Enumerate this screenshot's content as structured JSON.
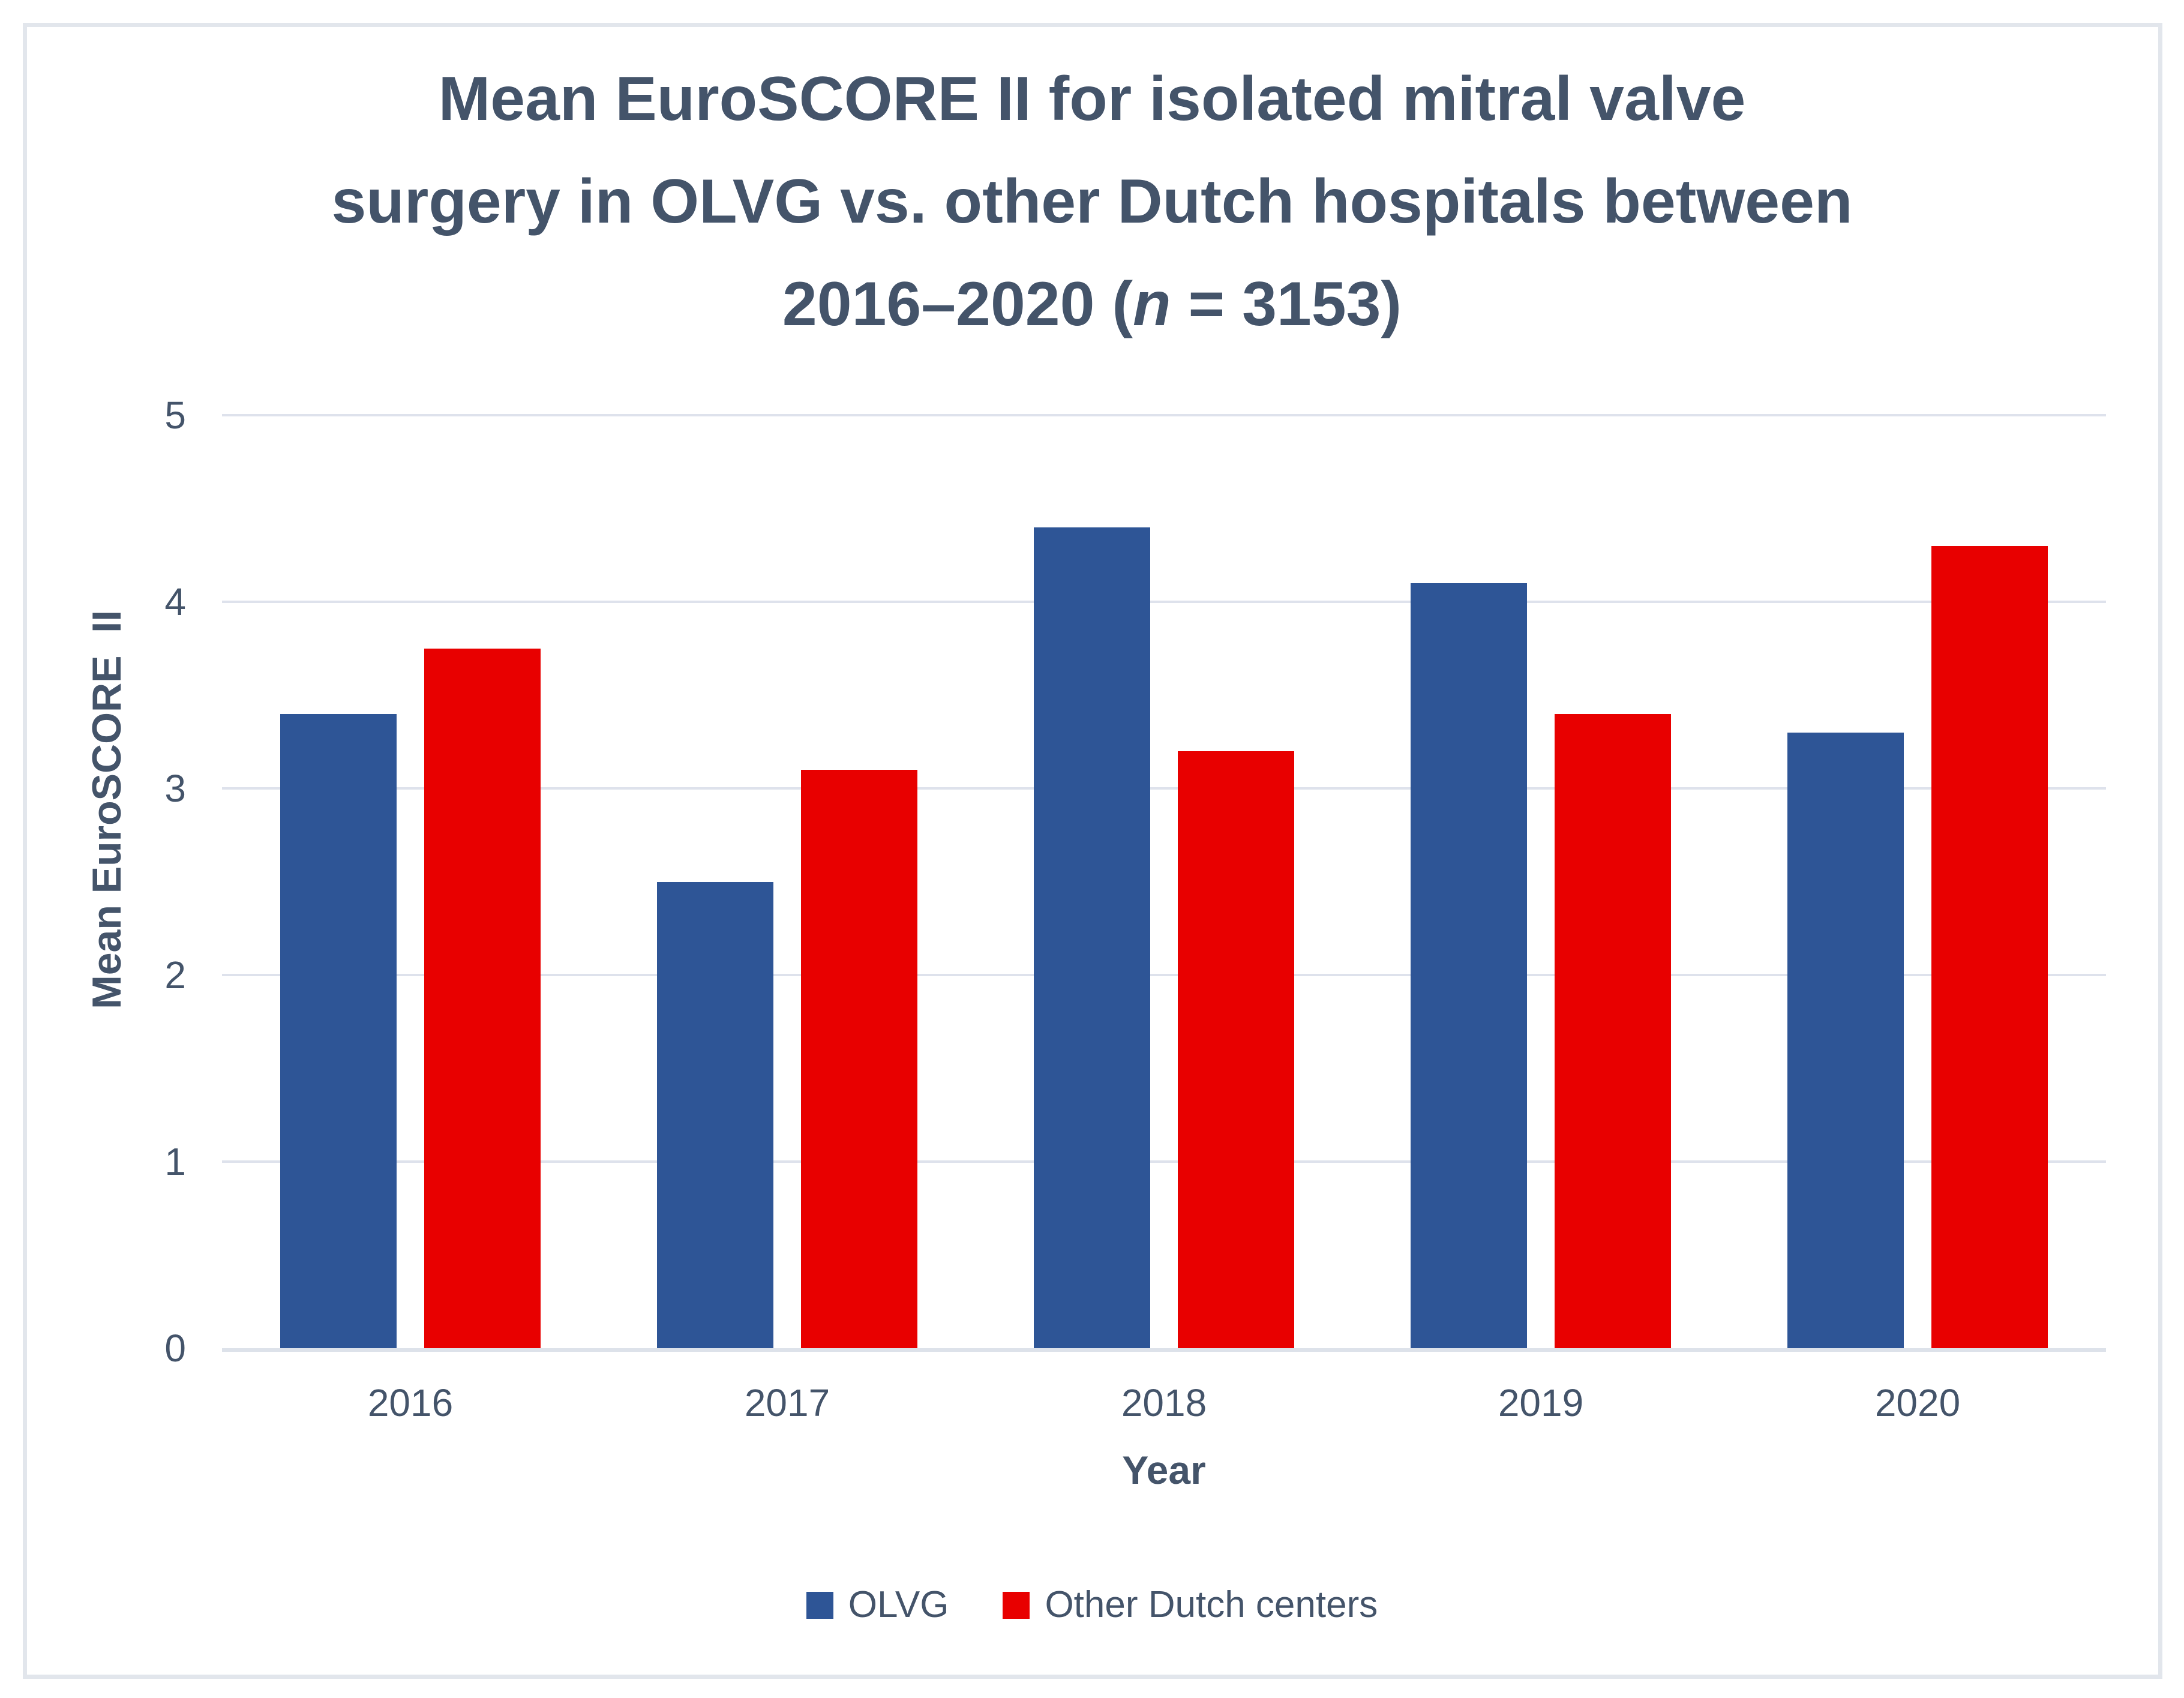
{
  "title": {
    "line1": "Mean EuroSCORE II for isolated mitral valve",
    "line2": "surgery in OLVG vs. other Dutch hospitals between",
    "line3_prefix": "2016–2020 (",
    "line3_n": "n",
    "line3_suffix": " = 3153)"
  },
  "axes": {
    "y_title": "Mean EuroSCORE  II",
    "x_title": "Year"
  },
  "colors": {
    "text": "#44546A",
    "gridline": "#DEE2EC",
    "frame_border": "#E2E6EC",
    "olvg_blue": "#2E5596",
    "other_red": "#E80000"
  },
  "chart_data": {
    "type": "bar",
    "title": "Mean EuroSCORE II for isolated mitral valve surgery in OLVG vs. other Dutch hospitals between 2016–2020 (n = 3153)",
    "categories": [
      "2016",
      "2017",
      "2018",
      "2019",
      "2020"
    ],
    "series": [
      {
        "name": "OLVG",
        "color": "#2E5596",
        "values": [
          3.4,
          2.5,
          4.4,
          4.1,
          3.3
        ]
      },
      {
        "name": "Other Dutch centers",
        "color": "#E80000",
        "values": [
          3.75,
          3.1,
          3.2,
          3.4,
          4.3
        ]
      }
    ],
    "xlabel": "Year",
    "ylabel": "Mean EuroSCORE II",
    "ylim": [
      0,
      5
    ],
    "yticks": [
      0,
      1,
      2,
      3,
      4,
      5
    ],
    "grid": true,
    "legend_position": "bottom"
  }
}
